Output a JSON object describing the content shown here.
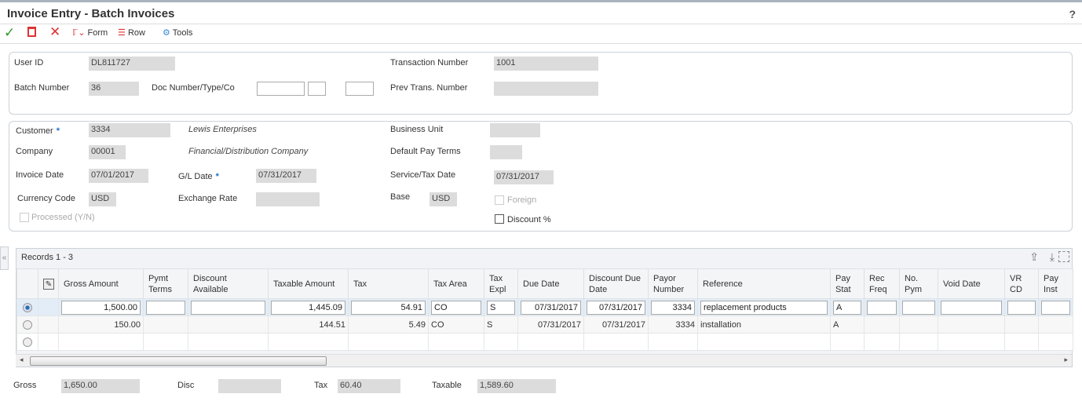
{
  "title": "Invoice Entry - Batch Invoices",
  "help": "?",
  "toolbar": {
    "form": "Form",
    "row": "Row",
    "tools": "Tools"
  },
  "header": {
    "user_id_label": "User ID",
    "user_id": "DL811727",
    "batch_label": "Batch Number",
    "batch": "36",
    "doc_label": "Doc Number/Type/Co",
    "trans_label": "Transaction Number",
    "trans": "1001",
    "prev_label": "Prev Trans. Number",
    "prev": ""
  },
  "details": {
    "customer_label": "Customer",
    "customer": "3334",
    "customer_name": "Lewis Enterprises",
    "company_label": "Company",
    "company": "00001",
    "company_name": "Financial/Distribution Company",
    "invoice_date_label": "Invoice Date",
    "invoice_date": "07/01/2017",
    "gl_date_label": "G/L Date",
    "gl_date": "07/31/2017",
    "currency_label": "Currency Code",
    "currency": "USD",
    "exchange_label": "Exchange Rate",
    "exchange": "",
    "processed_label": "Processed (Y/N)",
    "bu_label": "Business Unit",
    "bu": "",
    "pay_terms_label": "Default Pay Terms",
    "pay_terms": "",
    "service_label": "Service/Tax Date",
    "service": "07/31/2017",
    "base_label": "Base",
    "base": "USD",
    "foreign_label": "Foreign",
    "discount_label": "Discount %"
  },
  "grid": {
    "records": "Records 1 - 3",
    "columns": [
      "Gross Amount",
      "Pymt Terms",
      "Discount Available",
      "Taxable Amount",
      "Tax",
      "Tax Area",
      "Tax Expl",
      "Due Date",
      "Discount Due Date",
      "Payor Number",
      "Reference",
      "Pay Stat",
      "Rec Freq",
      "No. Pym",
      "Void Date",
      "VR CD",
      "Pay Inst"
    ],
    "rows": [
      [
        "1,500.00",
        "",
        "",
        "1,445.09",
        "54.91",
        "CO",
        "S",
        "07/31/2017",
        "07/31/2017",
        "3334",
        "replacement products",
        "A",
        "",
        "",
        "",
        "",
        ""
      ],
      [
        "150.00",
        "",
        "",
        "144.51",
        "5.49",
        "CO",
        "S",
        "07/31/2017",
        "07/31/2017",
        "3334",
        "installation",
        "A",
        "",
        "",
        "",
        "",
        ""
      ],
      [
        "",
        "",
        "",
        "",
        "",
        "",
        "",
        "",
        "",
        "",
        "",
        "",
        "",
        "",
        "",
        "",
        ""
      ]
    ],
    "selected_row": 0
  },
  "totals": {
    "gross_label": "Gross",
    "gross": "1,650.00",
    "disc_label": "Disc",
    "disc": "",
    "tax_label": "Tax",
    "tax": "60.40",
    "taxable_label": "Taxable",
    "taxable": "1,589.60"
  }
}
